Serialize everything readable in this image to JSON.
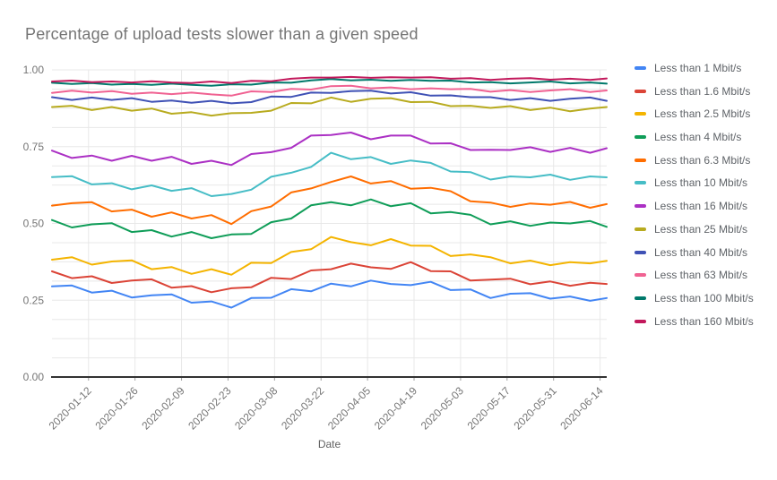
{
  "chart_data": {
    "type": "line",
    "title": "Percentage of upload tests slower than a given speed",
    "xlabel": "Date",
    "ylabel": "",
    "ylim": [
      0,
      1
    ],
    "grid": {
      "on": true,
      "minor_step": 0.0625,
      "color": "#E8E8E8",
      "baseline_color": "#333333"
    },
    "legend_position": "right",
    "text_colors": {
      "title": "#757575",
      "ticks": "#757575",
      "axis_title": "#616161",
      "legend": "#5F6368"
    },
    "y_ticks": [
      0,
      0.25,
      0.5,
      0.75,
      1
    ],
    "y_tick_labels": [
      "0.00",
      "0.25",
      "0.50",
      "0.75",
      "1.00"
    ],
    "x_tick_labels": [
      "2020-01-12",
      "2020-01-26",
      "2020-02-09",
      "2020-02-23",
      "2020-03-08",
      "2020-03-22",
      "2020-04-05",
      "2020-04-19",
      "2020-05-03",
      "2020-05-17",
      "2020-05-31",
      "2020-06-14"
    ],
    "x": [
      "2020-01-01",
      "2020-01-07",
      "2020-01-13",
      "2020-01-19",
      "2020-01-25",
      "2020-01-31",
      "2020-02-06",
      "2020-02-12",
      "2020-02-18",
      "2020-02-24",
      "2020-03-01",
      "2020-03-07",
      "2020-03-13",
      "2020-03-19",
      "2020-03-25",
      "2020-03-31",
      "2020-04-06",
      "2020-04-12",
      "2020-04-18",
      "2020-04-24",
      "2020-04-30",
      "2020-05-06",
      "2020-05-12",
      "2020-05-18",
      "2020-05-24",
      "2020-05-30",
      "2020-06-05",
      "2020-06-11",
      "2020-06-16"
    ],
    "series": [
      {
        "name": "Less than 1 Mbit/s",
        "color": "#4285F4",
        "values": [
          0.295,
          0.298,
          0.275,
          0.281,
          0.259,
          0.266,
          0.269,
          0.242,
          0.246,
          0.226,
          0.257,
          0.258,
          0.286,
          0.279,
          0.304,
          0.295,
          0.314,
          0.303,
          0.299,
          0.31,
          0.283,
          0.285,
          0.257,
          0.271,
          0.273,
          0.255,
          0.262,
          0.248,
          0.257
        ]
      },
      {
        "name": "Less than 1.6 Mbit/s",
        "color": "#DB4437",
        "values": [
          0.344,
          0.322,
          0.328,
          0.306,
          0.314,
          0.318,
          0.291,
          0.296,
          0.276,
          0.289,
          0.292,
          0.323,
          0.319,
          0.347,
          0.351,
          0.369,
          0.357,
          0.352,
          0.374,
          0.345,
          0.344,
          0.314,
          0.317,
          0.32,
          0.302,
          0.311,
          0.297,
          0.307,
          0.303
        ]
      },
      {
        "name": "Less than 2.5 Mbit/s",
        "color": "#F4B400",
        "values": [
          0.382,
          0.39,
          0.366,
          0.376,
          0.38,
          0.351,
          0.358,
          0.336,
          0.351,
          0.333,
          0.372,
          0.371,
          0.407,
          0.416,
          0.456,
          0.439,
          0.429,
          0.449,
          0.428,
          0.427,
          0.394,
          0.399,
          0.39,
          0.37,
          0.379,
          0.364,
          0.374,
          0.37,
          0.378
        ]
      },
      {
        "name": "Less than 4 Mbit/s",
        "color": "#0F9D58",
        "values": [
          0.511,
          0.487,
          0.497,
          0.501,
          0.472,
          0.478,
          0.457,
          0.472,
          0.452,
          0.464,
          0.466,
          0.504,
          0.516,
          0.559,
          0.569,
          0.559,
          0.578,
          0.556,
          0.566,
          0.533,
          0.537,
          0.528,
          0.497,
          0.507,
          0.492,
          0.503,
          0.5,
          0.508,
          0.489
        ]
      },
      {
        "name": "Less than 6.3 Mbit/s",
        "color": "#FF6D00",
        "values": [
          0.558,
          0.566,
          0.569,
          0.539,
          0.545,
          0.522,
          0.536,
          0.516,
          0.527,
          0.498,
          0.54,
          0.555,
          0.601,
          0.614,
          0.635,
          0.653,
          0.63,
          0.638,
          0.613,
          0.616,
          0.605,
          0.572,
          0.568,
          0.554,
          0.565,
          0.561,
          0.57,
          0.551,
          0.563
        ]
      },
      {
        "name": "Less than 10 Mbit/s",
        "color": "#46BDC6",
        "values": [
          0.651,
          0.654,
          0.627,
          0.631,
          0.611,
          0.624,
          0.606,
          0.615,
          0.589,
          0.596,
          0.61,
          0.652,
          0.665,
          0.684,
          0.73,
          0.709,
          0.716,
          0.694,
          0.705,
          0.697,
          0.669,
          0.667,
          0.643,
          0.653,
          0.65,
          0.659,
          0.642,
          0.653,
          0.65
        ]
      },
      {
        "name": "Less than 16 Mbit/s",
        "color": "#AB30C4",
        "values": [
          0.737,
          0.713,
          0.721,
          0.704,
          0.72,
          0.704,
          0.717,
          0.694,
          0.704,
          0.69,
          0.726,
          0.732,
          0.746,
          0.786,
          0.788,
          0.796,
          0.774,
          0.786,
          0.786,
          0.76,
          0.761,
          0.739,
          0.74,
          0.739,
          0.748,
          0.733,
          0.746,
          0.73,
          0.745
        ]
      },
      {
        "name": "Less than 25 Mbit/s",
        "color": "#B8AB1F",
        "values": [
          0.879,
          0.883,
          0.869,
          0.879,
          0.867,
          0.874,
          0.857,
          0.862,
          0.851,
          0.859,
          0.86,
          0.867,
          0.892,
          0.891,
          0.91,
          0.896,
          0.906,
          0.908,
          0.895,
          0.896,
          0.882,
          0.883,
          0.876,
          0.882,
          0.869,
          0.877,
          0.865,
          0.874,
          0.879
        ]
      },
      {
        "name": "Less than 40 Mbit/s",
        "color": "#3F51B5",
        "values": [
          0.911,
          0.902,
          0.91,
          0.902,
          0.908,
          0.896,
          0.9,
          0.893,
          0.899,
          0.891,
          0.895,
          0.913,
          0.912,
          0.926,
          0.925,
          0.931,
          0.932,
          0.923,
          0.927,
          0.916,
          0.917,
          0.911,
          0.911,
          0.902,
          0.908,
          0.899,
          0.906,
          0.91,
          0.899
        ]
      },
      {
        "name": "Less than 63 Mbit/s",
        "color": "#F06292",
        "values": [
          0.925,
          0.932,
          0.926,
          0.931,
          0.922,
          0.926,
          0.921,
          0.926,
          0.92,
          0.916,
          0.93,
          0.928,
          0.938,
          0.936,
          0.947,
          0.948,
          0.94,
          0.943,
          0.937,
          0.94,
          0.937,
          0.938,
          0.929,
          0.934,
          0.928,
          0.933,
          0.937,
          0.928,
          0.933
        ]
      },
      {
        "name": "Less than 100 Mbit/s",
        "color": "#00796B",
        "values": [
          0.958,
          0.954,
          0.957,
          0.952,
          0.954,
          0.951,
          0.955,
          0.951,
          0.948,
          0.953,
          0.952,
          0.959,
          0.958,
          0.966,
          0.97,
          0.966,
          0.968,
          0.964,
          0.967,
          0.964,
          0.965,
          0.959,
          0.96,
          0.956,
          0.959,
          0.962,
          0.956,
          0.959,
          0.955
        ]
      },
      {
        "name": "Less than 160 Mbit/s",
        "color": "#C2185B",
        "values": [
          0.962,
          0.965,
          0.96,
          0.962,
          0.959,
          0.963,
          0.959,
          0.957,
          0.962,
          0.957,
          0.964,
          0.963,
          0.971,
          0.975,
          0.975,
          0.977,
          0.974,
          0.976,
          0.975,
          0.976,
          0.971,
          0.973,
          0.967,
          0.971,
          0.973,
          0.968,
          0.971,
          0.967,
          0.972
        ]
      }
    ]
  }
}
